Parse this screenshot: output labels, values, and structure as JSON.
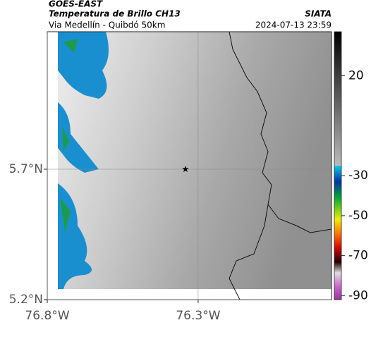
{
  "header": {
    "satellite": "GOES-EAST",
    "product": "Temperatura de Brillo CH13",
    "source": "SIATA",
    "route": "Via Medellín - Quibdó 50km",
    "timestamp": "2024-07-13 23:59"
  },
  "map": {
    "latlim": [
      5.2,
      6.227
    ],
    "lonlim": [
      -76.8,
      -75.858
    ],
    "latticks": [
      {
        "value": 5.7,
        "label": "5.7°N"
      },
      {
        "value": 5.2,
        "label": "5.2°N"
      }
    ],
    "lonticks": [
      {
        "value": -76.8,
        "label": "76.8°W"
      },
      {
        "value": -76.3,
        "label": "76.3°W"
      }
    ],
    "grid": true,
    "marker": {
      "lon": -76.342,
      "lat": 5.7
    }
  },
  "colorbar": {
    "lim": [
      -92,
      42
    ],
    "ticks": [
      20,
      -30,
      -50,
      -70,
      -90
    ]
  }
}
